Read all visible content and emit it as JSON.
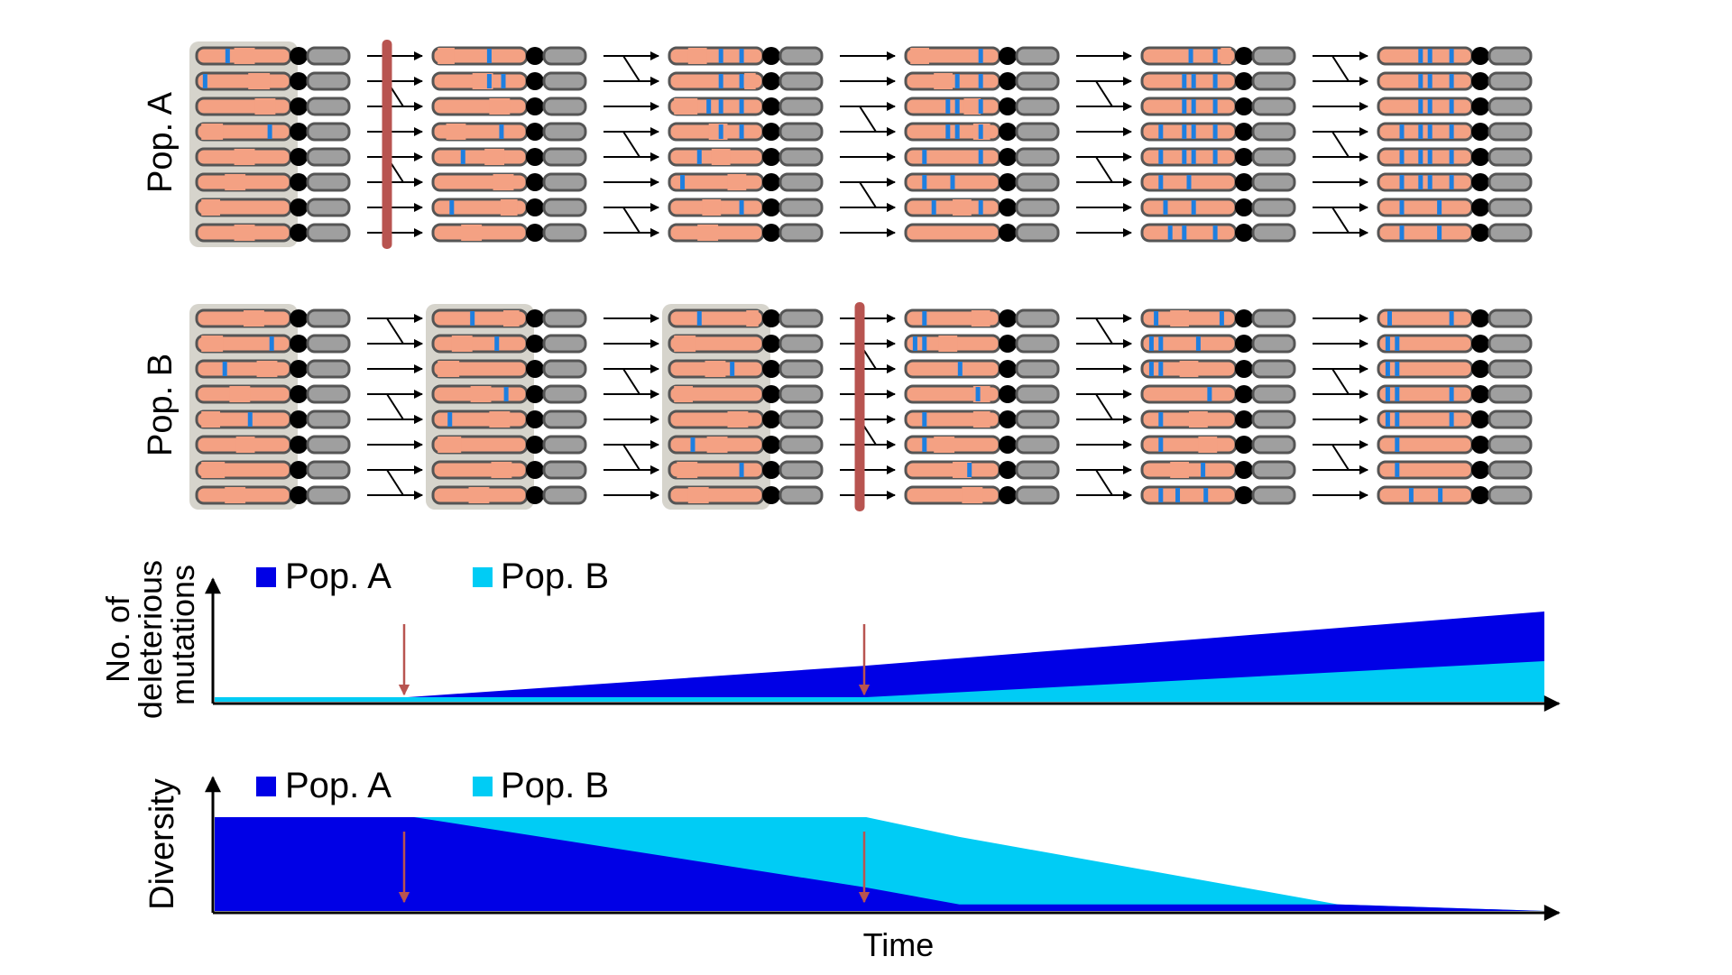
{
  "populations": [
    {
      "label": "Pop. A",
      "chromosome_count": 8,
      "generations": [
        {
          "mutations": [
            [
              0.33
            ],
            [
              0.09
            ],
            [],
            [
              0.78
            ],
            [],
            [],
            [],
            []
          ],
          "cut": [
            [
              0.4,
              0.62
            ],
            [
              0.55,
              0.78
            ],
            [
              0.62,
              0.84
            ],
            [
              0.05,
              0.28
            ],
            [
              0.4,
              0.62
            ],
            [
              0.3,
              0.52
            ],
            [
              0.05,
              0.25
            ],
            [
              0.4,
              0.62
            ]
          ]
        },
        {
          "mutations": [
            [
              0.6
            ],
            [
              0.6,
              0.75
            ],
            [],
            [
              0.73
            ],
            [
              0.32
            ],
            [],
            [
              0.2
            ],
            []
          ],
          "cut": [
            [
              0.05,
              0.23
            ],
            [
              0.42,
              0.64
            ],
            [
              0.6,
              0.82
            ],
            [
              0.14,
              0.35
            ],
            [
              0.55,
              0.76
            ],
            [
              0.64,
              0.86
            ],
            [
              0.72,
              0.9
            ],
            [
              0.3,
              0.52
            ]
          ]
        },
        {
          "mutations": [
            [
              0.55,
              0.77
            ],
            [
              0.55,
              0.77
            ],
            [
              0.42,
              0.55,
              0.77
            ],
            [
              0.55,
              0.77
            ],
            [
              0.32
            ],
            [
              0.14
            ],
            [
              0.77
            ],
            []
          ],
          "cut": [
            [
              0.2,
              0.4
            ],
            [
              0.8,
              0.92
            ],
            [
              0.05,
              0.3
            ],
            [
              0.42,
              0.62
            ],
            [
              0.45,
              0.65
            ],
            [
              0.62,
              0.82
            ],
            [
              0.35,
              0.55
            ],
            [
              0.3,
              0.52
            ]
          ]
        },
        {
          "mutations": [
            [
              0.8
            ],
            [
              0.55,
              0.8
            ],
            [
              0.45,
              0.55,
              0.8
            ],
            [
              0.45,
              0.55,
              0.8
            ],
            [
              0.2,
              0.8
            ],
            [
              0.2,
              0.5
            ],
            [
              0.3,
              0.8
            ],
            []
          ],
          "cut": [
            [
              0.05,
              0.25
            ],
            [
              0.3,
              0.5
            ],
            [
              0.62,
              0.8
            ],
            [
              0.72,
              0.9
            ],
            [],
            [],
            [
              0.5,
              0.7
            ],
            []
          ]
        },
        {
          "mutations": [
            [
              0.52,
              0.78
            ],
            [
              0.45,
              0.55,
              0.78
            ],
            [
              0.45,
              0.55,
              0.78
            ],
            [
              0.2,
              0.45,
              0.55,
              0.78
            ],
            [
              0.2,
              0.45,
              0.55,
              0.78
            ],
            [
              0.2,
              0.5
            ],
            [
              0.25,
              0.55
            ],
            [
              0.3,
              0.45,
              0.78
            ]
          ],
          "cut": [
            [
              0.84,
              0.95
            ],
            [],
            [],
            [],
            [],
            [],
            [],
            []
          ]
        },
        {
          "mutations": [
            [
              0.45,
              0.55,
              0.78
            ],
            [
              0.45,
              0.55,
              0.78
            ],
            [
              0.45,
              0.55,
              0.78
            ],
            [
              0.25,
              0.45,
              0.55,
              0.78
            ],
            [
              0.25,
              0.45,
              0.55,
              0.78
            ],
            [
              0.25,
              0.45,
              0.55,
              0.78
            ],
            [
              0.25,
              0.65
            ],
            [
              0.25,
              0.65
            ]
          ],
          "cut": [
            [],
            [],
            [],
            [],
            [],
            [],
            [],
            []
          ]
        }
      ]
    },
    {
      "label": "Pop. B",
      "chromosome_count": 8,
      "generations": [
        {
          "mutations": [
            [],
            [
              0.8
            ],
            [
              0.3
            ],
            [],
            [
              0.57
            ],
            [],
            [],
            []
          ],
          "cut": [
            [
              0.5,
              0.72
            ],
            [
              0.05,
              0.28
            ],
            [
              0.64,
              0.86
            ],
            [
              0.35,
              0.57
            ],
            [
              0.05,
              0.25
            ],
            [
              0.42,
              0.62
            ],
            [
              0.05,
              0.3
            ],
            [
              0.3,
              0.52
            ]
          ]
        },
        {
          "mutations": [
            [
              0.42
            ],
            [
              0.68
            ],
            [],
            [
              0.78
            ],
            [
              0.18
            ],
            [],
            [],
            []
          ],
          "cut": [
            [
              0.75,
              0.92
            ],
            [
              0.2,
              0.42
            ],
            [
              0.05,
              0.28
            ],
            [
              0.4,
              0.62
            ],
            [
              0.6,
              0.82
            ],
            [
              0.05,
              0.3
            ],
            [
              0.62,
              0.84
            ],
            [
              0.38,
              0.6
            ]
          ]
        },
        {
          "mutations": [
            [
              0.32
            ],
            [],
            [
              0.67
            ],
            [],
            [],
            [
              0.25
            ],
            [
              0.77
            ],
            []
          ],
          "cut": [
            [
              0.82,
              0.95
            ],
            [
              0.05,
              0.28
            ],
            [
              0.38,
              0.6
            ],
            [
              0.05,
              0.25
            ],
            [
              0.62,
              0.84
            ],
            [
              0.4,
              0.62
            ],
            [
              0.08,
              0.3
            ],
            [
              0.2,
              0.42
            ]
          ]
        },
        {
          "mutations": [
            [
              0.2
            ],
            [
              0.1,
              0.2
            ],
            [
              0.58
            ],
            [
              0.77
            ],
            [
              0.2
            ],
            [
              0.2
            ],
            [
              0.68
            ],
            []
          ],
          "cut": [
            [
              0.7,
              0.9
            ],
            [
              0.35,
              0.55
            ],
            [],
            [
              0.72,
              0.9
            ],
            [
              0.72,
              0.9
            ],
            [
              0.3,
              0.52
            ],
            [
              0.5,
              0.7
            ],
            [
              0.6,
              0.82
            ]
          ]
        },
        {
          "mutations": [
            [
              0.15,
              0.85
            ],
            [
              0.1,
              0.2,
              0.6
            ],
            [
              0.1,
              0.2
            ],
            [
              0.72
            ],
            [
              0.2
            ],
            [
              0.2
            ],
            [
              0.65
            ],
            [
              0.2,
              0.38,
              0.68
            ]
          ],
          "cut": [
            [
              0.3,
              0.5
            ],
            [],
            [
              0.4,
              0.6
            ],
            [],
            [
              0.5,
              0.7
            ],
            [
              0.6,
              0.8
            ],
            [
              0.3,
              0.5
            ],
            []
          ]
        },
        {
          "mutations": [
            [
              0.12,
              0.78
            ],
            [
              0.1,
              0.2
            ],
            [
              0.1,
              0.2
            ],
            [
              0.1,
              0.2,
              0.78
            ],
            [
              0.1,
              0.2,
              0.78
            ],
            [
              0.2
            ],
            [
              0.2
            ],
            [
              0.35,
              0.66
            ]
          ],
          "cut": [
            [],
            [],
            [],
            [],
            [],
            [],
            [],
            []
          ]
        }
      ]
    }
  ],
  "bottlenecks": [
    {
      "population": "Pop. A",
      "after_generation": 1,
      "shaded_generations": [
        1
      ]
    },
    {
      "population": "Pop. B",
      "after_generation": 3,
      "shaded_generations": [
        1,
        2,
        3
      ]
    }
  ],
  "chart_data": [
    {
      "type": "area",
      "ylabel": "No. of deleterious mutations",
      "xlabel": "",
      "legend_position": "top-left",
      "x": [
        0,
        0.145,
        0.49,
        1.0
      ],
      "series": [
        {
          "name": "Pop. A",
          "color": "#0000e6",
          "values": [
            0.05,
            0.05,
            0.4,
            1.0
          ]
        },
        {
          "name": "Pop. B",
          "color": "#00ccf5",
          "values": [
            0.05,
            0.05,
            0.05,
            0.45
          ]
        }
      ],
      "xlim": [
        0,
        1
      ],
      "ylim": [
        0,
        1
      ],
      "bottleneck_times": [
        0.145,
        0.49
      ]
    },
    {
      "type": "area",
      "ylabel": "Diversity",
      "xlabel": "Time",
      "legend_position": "top-left",
      "x": [
        0,
        0.15,
        0.49,
        0.56,
        0.845,
        1.0
      ],
      "series": [
        {
          "name": "Pop. B",
          "color": "#00ccf5",
          "values": [
            1.0,
            1.0,
            1.0,
            0.79,
            0.07,
            0.0
          ]
        },
        {
          "name": "Pop. A",
          "color": "#0000e6",
          "values": [
            1.0,
            1.0,
            0.25,
            0.07,
            0.07,
            0.0
          ]
        }
      ],
      "xlim": [
        0,
        1
      ],
      "ylim": [
        0,
        1
      ],
      "bottleneck_times": [
        0.145,
        0.49
      ]
    }
  ],
  "colors": {
    "chromosome_fill": "#f4a183",
    "chromosome_stroke": "#555555",
    "mutation": "#1e7fe0",
    "centromere": "#000000",
    "arm": "#9f9f9f",
    "shade": "#d6d4cc",
    "bottleneck": "#b85450",
    "pop_a": "#0000e6",
    "pop_b": "#00ccf5"
  }
}
